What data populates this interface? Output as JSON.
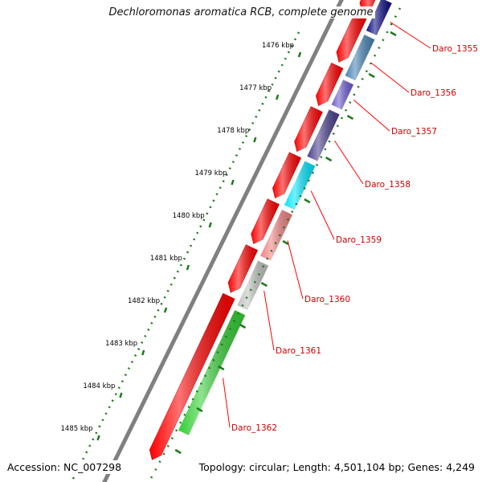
{
  "title": "Dechloromonas aromatica RCB, complete genome",
  "accession": "Accession: NC_007298",
  "summary": "Topology: circular; Length: 4,501,104 bp; Genes: 4,249",
  "ruler": [
    "1476 kbp",
    "1477 kbp",
    "1478 kbp",
    "1479 kbp",
    "1480 kbp",
    "1481 kbp",
    "1482 kbp",
    "1483 kbp",
    "1484 kbp",
    "1485 kbp"
  ],
  "genes": [
    {
      "label": "Daro_1355",
      "color": "#0a0a80"
    },
    {
      "label": "Daro_1356",
      "color": "#4682b4"
    },
    {
      "label": "Daro_1357",
      "color": "#6a5acd"
    },
    {
      "label": "Daro_1358",
      "color": "#483d8b"
    },
    {
      "label": "Daro_1359",
      "color": "#00e5ff"
    },
    {
      "label": "Daro_1360",
      "color": "#f08080"
    },
    {
      "label": "Daro_1361",
      "color": "#c0c0c0"
    },
    {
      "label": "Daro_1362",
      "color": "#32cd32"
    }
  ],
  "colors": {
    "cds": "#ff0000",
    "backbone": "#808080",
    "ruler": "#1a7a1a",
    "gc_ticks": "#1a7a1a",
    "label": "#cc0000",
    "label_line": "#ff0000"
  }
}
